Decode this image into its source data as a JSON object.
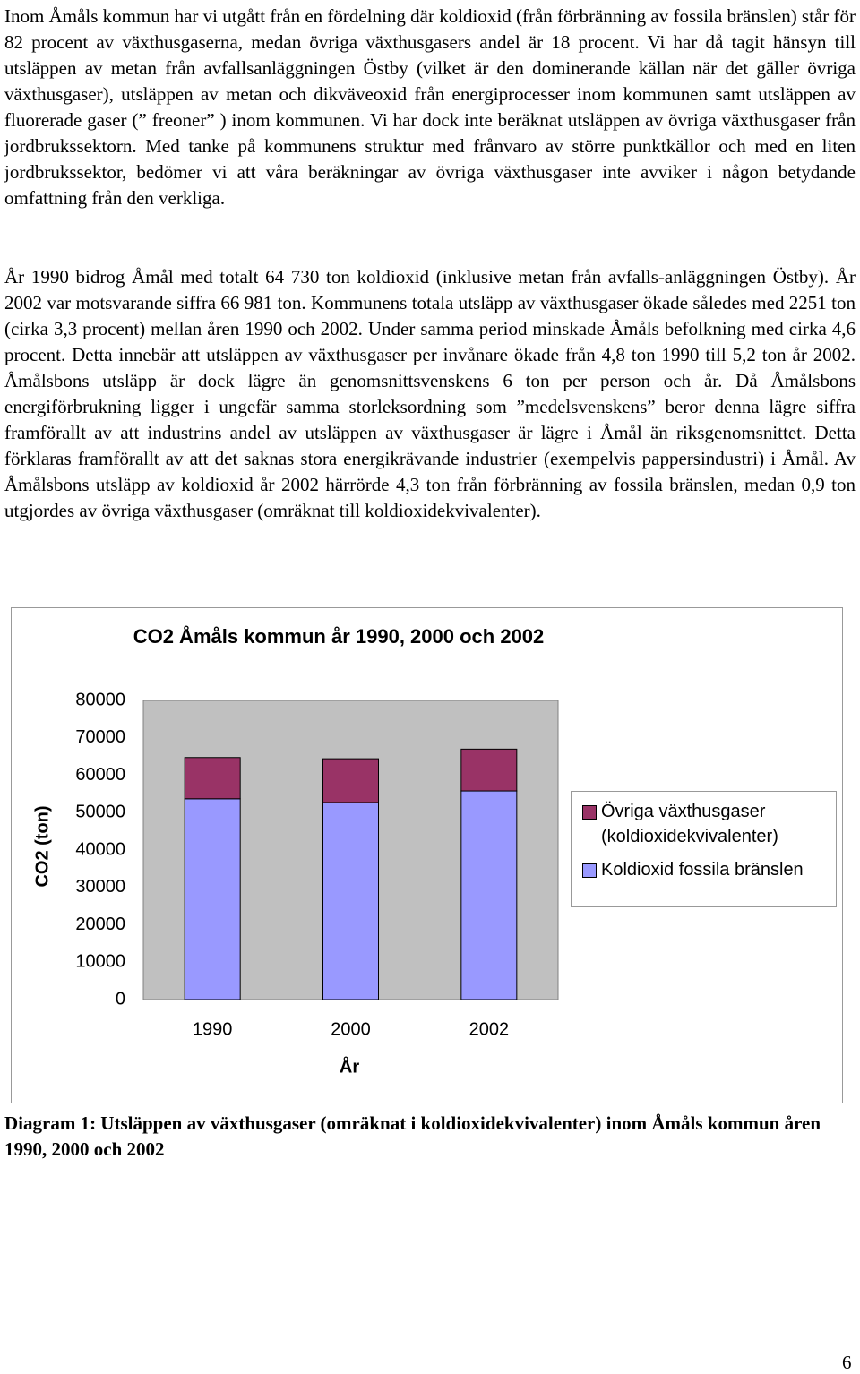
{
  "paragraphs": [
    "Inom Åmåls kommun har vi utgått från en fördelning där koldioxid (från förbränning av fossila bränslen) står för 82 procent av växthusgaserna, medan övriga växthusgasers andel är 18 procent. Vi har då tagit hänsyn till utsläppen av metan från avfallsanläggningen Östby (vilket är den dominerande källan när det gäller övriga växthusgaser), utsläppen av metan och dikväveoxid från energiprocesser inom kommunen samt utsläppen av fluorerade gaser (” freoner” ) inom kommunen. Vi har dock inte beräknat utsläppen av övriga växthusgaser från jordbrukssektorn. Med tanke på kommunens struktur med frånvaro av större punktkällor och med en liten jordbrukssektor, bedömer vi att våra beräkningar av övriga växthusgaser inte avviker i någon betydande omfattning från den verkliga.",
    "År 1990 bidrog Åmål med totalt 64 730 ton koldioxid (inklusive metan från avfalls-anläggningen Östby). År 2002 var motsvarande siffra 66 981 ton. Kommunens totala utsläpp av växthusgaser ökade således med 2251 ton (cirka 3,3 procent) mellan åren 1990 och 2002. Under samma period minskade Åmåls befolkning med cirka 4,6 procent. Detta innebär att utsläppen av växthusgaser per invånare ökade från 4,8 ton 1990 till 5,2 ton år 2002. Åmålsbons utsläpp är dock lägre än genomsnittsvenskens 6 ton per person och år. Då Åmålsbons energiförbrukning ligger i ungefär samma storleksordning som ”medelsvenskens” beror denna lägre siffra framförallt av att industrins andel av utsläppen av växthusgaser är lägre i Åmål än riksgenomsnittet. Detta förklaras framförallt av att det saknas stora energikrävande industrier (exempelvis pappersindustri) i Åmål. Av Åmålsbons utsläpp av koldioxid år 2002 härrörde 4,3 ton från förbränning av fossila bränslen, medan 0,9 ton utgjordes av övriga växthusgaser (omräknat till koldioxidekvivalenter)."
  ],
  "chart_data": {
    "type": "stacked_bar",
    "title": "CO2 Åmåls kommun år 1990, 2000 och 2002",
    "x_label": "År",
    "y_label": "CO2 (ton)",
    "categories": [
      "1990",
      "2000",
      "2002"
    ],
    "series": [
      {
        "name": "Koldioxid fossila bränslen",
        "color": "#9999ff",
        "values": [
          53700,
          52700,
          55800
        ]
      },
      {
        "name": "Övriga växthusgaser (koldioxidekvivalenter)",
        "color": "#993366",
        "values": [
          11030,
          11700,
          11181
        ]
      }
    ],
    "ylim": [
      0,
      80000
    ],
    "yticks": [
      0,
      10000,
      20000,
      30000,
      40000,
      50000,
      60000,
      70000,
      80000
    ],
    "grid": false,
    "legend": "right",
    "plot_background": "#c0c0c0"
  },
  "caption": "Diagram 1: Utsläppen av växthusgaser (omräknat i koldioxidekvivalenter) inom Åmåls kommun åren 1990, 2000 och 2002",
  "page_number": "6"
}
